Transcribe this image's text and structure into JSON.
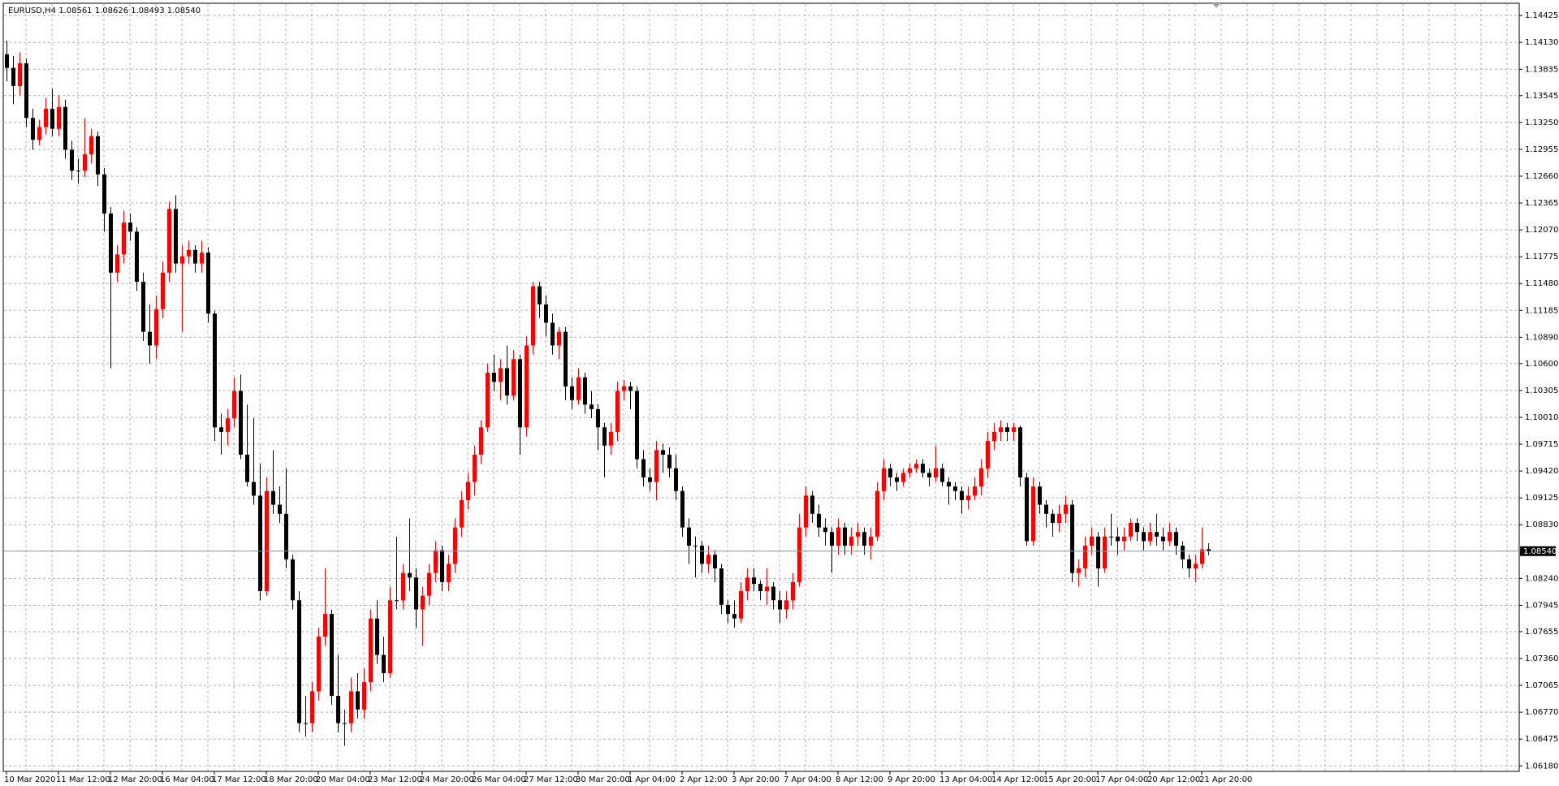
{
  "chart_data": {
    "type": "candlestick",
    "title": "EURUSD,H4  1.08561 1.08626 1.08493 1.08540",
    "up_color": "#ff0000",
    "down_color": "#000000",
    "grid": true,
    "last_price": {
      "value": 1.0854,
      "label": "1.08540"
    },
    "x_labels": [
      "10 Mar 2020",
      "11 Mar 12:00",
      "12 Mar 20:00",
      "16 Mar 04:00",
      "17 Mar 12:00",
      "18 Mar 20:00",
      "20 Mar 04:00",
      "23 Mar 12:00",
      "24 Mar 20:00",
      "26 Mar 04:00",
      "27 Mar 12:00",
      "30 Mar 20:00",
      "1 Apr 04:00",
      "2 Apr 12:00",
      "3 Apr 20:00",
      "7 Apr 04:00",
      "8 Apr 12:00",
      "9 Apr 20:00",
      "13 Apr 04:00",
      "14 Apr 12:00",
      "15 Apr 20:00",
      "17 Apr 04:00",
      "20 Apr 12:00",
      "21 Apr 20:00"
    ],
    "ylim": [
      1.0612,
      1.1456
    ],
    "yticks": [
      1.14425,
      {
        "value": 1.1413,
        "label": "1.14130"
      },
      1.13835,
      1.13545,
      {
        "value": 1.1325,
        "label": "1.13250"
      },
      1.12955,
      {
        "value": 1.1266,
        "label": "1.12660"
      },
      1.12365,
      {
        "value": 1.1207,
        "label": "1.12070"
      },
      1.11775,
      {
        "value": 1.1148,
        "label": "1.11480"
      },
      1.11185,
      {
        "value": 1.1089,
        "label": "1.10890"
      },
      {
        "value": 1.106,
        "label": "1.10600"
      },
      1.10305,
      {
        "value": 1.1001,
        "label": "1.10010"
      },
      1.09715,
      {
        "value": 1.0942,
        "label": "1.09420"
      },
      1.09125,
      {
        "value": 1.0883,
        "label": "1.08830"
      },
      {
        "value": 1.0824,
        "label": "1.08240"
      },
      1.07945,
      1.07655,
      {
        "value": 1.0736,
        "label": "1.07360"
      },
      1.07065,
      {
        "value": 1.0677,
        "label": "1.06770"
      },
      1.06475,
      {
        "value": 1.0618,
        "label": "1.06180"
      }
    ],
    "candles": [
      [
        1.14,
        1.1415,
        1.137,
        1.1385
      ],
      [
        1.1385,
        1.1398,
        1.1345,
        1.1365
      ],
      [
        1.1365,
        1.1402,
        1.1355,
        1.139
      ],
      [
        1.139,
        1.1395,
        1.132,
        1.133
      ],
      [
        1.133,
        1.134,
        1.1295,
        1.1306
      ],
      [
        1.1306,
        1.1328,
        1.13,
        1.132
      ],
      [
        1.132,
        1.1352,
        1.1312,
        1.134
      ],
      [
        1.134,
        1.1362,
        1.131,
        1.1318
      ],
      [
        1.1318,
        1.1355,
        1.131,
        1.1342
      ],
      [
        1.1342,
        1.135,
        1.1285,
        1.1295
      ],
      [
        1.1295,
        1.1305,
        1.1262,
        1.1272
      ],
      [
        1.1272,
        1.1285,
        1.1258,
        1.1272
      ],
      [
        1.1272,
        1.133,
        1.1265,
        1.129
      ],
      [
        1.129,
        1.1318,
        1.128,
        1.131
      ],
      [
        1.131,
        1.1315,
        1.1255,
        1.1268
      ],
      [
        1.1268,
        1.1275,
        1.1205,
        1.1225
      ],
      [
        1.1225,
        1.1232,
        1.1055,
        1.116
      ],
      [
        1.116,
        1.119,
        1.115,
        1.118
      ],
      [
        1.118,
        1.1228,
        1.117,
        1.1215
      ],
      [
        1.1215,
        1.1225,
        1.1195,
        1.1205
      ],
      [
        1.1205,
        1.121,
        1.114,
        1.115
      ],
      [
        1.115,
        1.116,
        1.1085,
        1.1095
      ],
      [
        1.1095,
        1.1125,
        1.106,
        1.108
      ],
      [
        1.108,
        1.1135,
        1.1065,
        1.112
      ],
      [
        1.112,
        1.1172,
        1.111,
        1.116
      ],
      [
        1.116,
        1.1238,
        1.115,
        1.123
      ],
      [
        1.123,
        1.1245,
        1.116,
        1.117
      ],
      [
        1.117,
        1.119,
        1.1095,
        1.1178
      ],
      [
        1.1178,
        1.1195,
        1.117,
        1.1185
      ],
      [
        1.1185,
        1.119,
        1.116,
        1.117
      ],
      [
        1.117,
        1.1195,
        1.116,
        1.1182
      ],
      [
        1.1182,
        1.1188,
        1.1105,
        1.1115
      ],
      [
        1.1115,
        1.1118,
        1.0975,
        1.099
      ],
      [
        1.099,
        1.1005,
        1.096,
        1.0985
      ],
      [
        1.0985,
        1.101,
        1.097,
        1.1
      ],
      [
        1.1,
        1.1045,
        1.099,
        1.103
      ],
      [
        1.103,
        1.1048,
        1.0955,
        1.096
      ],
      [
        1.096,
        1.1015,
        1.0925,
        1.093
      ],
      [
        1.093,
        1.1,
        1.0905,
        1.0915
      ],
      [
        1.0915,
        1.095,
        1.08,
        1.081
      ],
      [
        1.081,
        1.0935,
        1.0805,
        1.092
      ],
      [
        1.092,
        1.0965,
        1.0895,
        1.0905
      ],
      [
        1.0905,
        1.0925,
        1.0885,
        1.0895
      ],
      [
        1.0895,
        1.0945,
        1.0835,
        1.0845
      ],
      [
        1.0845,
        1.085,
        1.079,
        1.08
      ],
      [
        1.08,
        1.081,
        1.0655,
        1.0665
      ],
      [
        1.0665,
        1.0695,
        1.065,
        1.0665
      ],
      [
        1.0665,
        1.071,
        1.0655,
        1.07
      ],
      [
        1.07,
        1.077,
        1.069,
        1.076
      ],
      [
        1.076,
        1.0835,
        1.075,
        1.0785
      ],
      [
        1.0785,
        1.079,
        1.0685,
        1.0695
      ],
      [
        1.0695,
        1.074,
        1.0655,
        1.0665
      ],
      [
        1.0665,
        1.068,
        1.064,
        1.0665
      ],
      [
        1.0665,
        1.0715,
        1.0655,
        1.07
      ],
      [
        1.07,
        1.072,
        1.067,
        1.068
      ],
      [
        1.068,
        1.0725,
        1.067,
        1.071
      ],
      [
        1.071,
        1.079,
        1.07,
        1.078
      ],
      [
        1.078,
        1.08,
        1.073,
        1.074
      ],
      [
        1.074,
        1.076,
        1.071,
        1.072
      ],
      [
        1.072,
        1.0815,
        1.0715,
        1.08
      ],
      [
        1.08,
        1.087,
        1.079,
        1.08
      ],
      [
        1.08,
        1.084,
        1.079,
        1.083
      ],
      [
        1.083,
        1.089,
        1.081,
        1.0825
      ],
      [
        1.0825,
        1.0835,
        1.077,
        1.079
      ],
      [
        1.079,
        1.0815,
        1.075,
        1.0805
      ],
      [
        1.0805,
        1.084,
        1.0795,
        1.083
      ],
      [
        1.083,
        1.0865,
        1.082,
        1.0855
      ],
      [
        1.0855,
        1.086,
        1.081,
        1.082
      ],
      [
        1.082,
        1.085,
        1.081,
        1.084
      ],
      [
        1.084,
        1.089,
        1.083,
        1.088
      ],
      [
        1.088,
        1.092,
        1.087,
        1.091
      ],
      [
        1.091,
        1.094,
        1.09,
        1.093
      ],
      [
        1.093,
        1.097,
        1.0915,
        1.096
      ],
      [
        1.096,
        1.0998,
        1.095,
        1.099
      ],
      [
        1.099,
        1.106,
        1.0985,
        1.105
      ],
      [
        1.105,
        1.107,
        1.103,
        1.104
      ],
      [
        1.104,
        1.1065,
        1.102,
        1.1055
      ],
      [
        1.1055,
        1.108,
        1.1015,
        1.1025
      ],
      [
        1.1025,
        1.1075,
        1.102,
        1.1065
      ],
      [
        1.1065,
        1.107,
        1.096,
        1.099
      ],
      [
        1.099,
        1.109,
        1.098,
        1.108
      ],
      [
        1.108,
        1.115,
        1.107,
        1.1145
      ],
      [
        1.1145,
        1.115,
        1.111,
        1.1125
      ],
      [
        1.1125,
        1.1135,
        1.109,
        1.1105
      ],
      [
        1.1105,
        1.1115,
        1.107,
        1.108
      ],
      [
        1.108,
        1.11,
        1.1065,
        1.1095
      ],
      [
        1.1095,
        1.11,
        1.102,
        1.1035
      ],
      [
        1.1035,
        1.1045,
        1.101,
        1.102
      ],
      [
        1.102,
        1.1055,
        1.1015,
        1.1045
      ],
      [
        1.1045,
        1.105,
        1.1005,
        1.1015
      ],
      [
        1.1015,
        1.103,
        1.1,
        1.101
      ],
      [
        1.101,
        1.1015,
        1.0965,
        1.099
      ],
      [
        1.099,
        1.0995,
        1.0935,
        1.097
      ],
      [
        1.097,
        1.0995,
        1.096,
        1.0985
      ],
      [
        1.0985,
        1.104,
        1.0975,
        1.103
      ],
      [
        1.103,
        1.1042,
        1.102,
        1.1035
      ],
      [
        1.1035,
        1.104,
        1.101,
        1.103
      ],
      [
        1.103,
        1.1035,
        1.0945,
        1.0955
      ],
      [
        1.0955,
        1.0965,
        1.0925,
        1.0935
      ],
      [
        1.0935,
        1.0945,
        1.092,
        1.093
      ],
      [
        1.093,
        1.0975,
        1.091,
        1.0965
      ],
      [
        1.0965,
        1.0972,
        1.094,
        1.096
      ],
      [
        1.096,
        1.0968,
        1.0935,
        1.0945
      ],
      [
        1.0945,
        1.096,
        1.091,
        1.092
      ],
      [
        1.092,
        1.0925,
        1.087,
        1.088
      ],
      [
        1.088,
        1.089,
        1.084,
        1.086
      ],
      [
        1.086,
        1.087,
        1.0825,
        1.086
      ],
      [
        1.086,
        1.0865,
        1.083,
        1.084
      ],
      [
        1.084,
        1.086,
        1.083,
        1.085
      ],
      [
        1.085,
        1.0855,
        1.082,
        1.0835
      ],
      [
        1.0835,
        1.084,
        1.0785,
        1.0795
      ],
      [
        1.0795,
        1.08,
        1.0775,
        1.0785
      ],
      [
        1.0785,
        1.08,
        1.077,
        1.078
      ],
      [
        1.078,
        1.082,
        1.0775,
        1.081
      ],
      [
        1.081,
        1.0835,
        1.08,
        1.0825
      ],
      [
        1.0825,
        1.0835,
        1.081,
        1.0818
      ],
      [
        1.0818,
        1.0822,
        1.08,
        1.081
      ],
      [
        1.081,
        1.0835,
        1.0795,
        1.0815
      ],
      [
        1.0815,
        1.082,
        1.079,
        1.08
      ],
      [
        1.08,
        1.081,
        1.0775,
        1.079
      ],
      [
        1.079,
        1.081,
        1.078,
        1.08
      ],
      [
        1.08,
        1.083,
        1.079,
        1.082
      ],
      [
        1.082,
        1.0895,
        1.0815,
        1.088
      ],
      [
        1.088,
        1.0925,
        1.087,
        1.0915
      ],
      [
        1.0915,
        1.092,
        1.0885,
        1.0895
      ],
      [
        1.0895,
        1.0905,
        1.087,
        1.088
      ],
      [
        1.088,
        1.089,
        1.086,
        1.0875
      ],
      [
        1.0875,
        1.088,
        1.083,
        1.086
      ],
      [
        1.086,
        1.089,
        1.085,
        1.088
      ],
      [
        1.088,
        1.0885,
        1.085,
        1.086
      ],
      [
        1.086,
        1.088,
        1.085,
        1.087
      ],
      [
        1.087,
        1.0885,
        1.086,
        1.0875
      ],
      [
        1.0875,
        1.088,
        1.085,
        1.086
      ],
      [
        1.086,
        1.088,
        1.0845,
        1.087
      ],
      [
        1.087,
        1.093,
        1.0865,
        1.092
      ],
      [
        1.092,
        1.0955,
        1.091,
        1.0945
      ],
      [
        1.0945,
        1.095,
        1.0925,
        1.0935
      ],
      [
        1.0935,
        1.094,
        1.092,
        1.093
      ],
      [
        1.093,
        1.0945,
        1.0925,
        1.094
      ],
      [
        1.094,
        1.095,
        1.0935,
        1.0945
      ],
      [
        1.0945,
        1.0955,
        1.094,
        1.095
      ],
      [
        1.095,
        1.0955,
        1.0935,
        1.094
      ],
      [
        1.094,
        1.0945,
        1.0925,
        1.0935
      ],
      [
        1.0935,
        1.097,
        1.093,
        1.0945
      ],
      [
        1.0945,
        1.095,
        1.0925,
        1.093
      ],
      [
        1.093,
        1.0935,
        1.0905,
        1.0925
      ],
      [
        1.0925,
        1.093,
        1.091,
        1.092
      ],
      [
        1.092,
        1.0925,
        1.0895,
        1.091
      ],
      [
        1.091,
        1.0925,
        1.09,
        1.0915
      ],
      [
        1.0915,
        1.0935,
        1.091,
        1.0925
      ],
      [
        1.0925,
        1.0955,
        1.0915,
        1.0945
      ],
      [
        1.0945,
        1.0985,
        1.0935,
        1.0975
      ],
      [
        1.0975,
        1.0995,
        1.0965,
        1.0985
      ],
      [
        1.0985,
        1.0998,
        1.0975,
        1.099
      ],
      [
        1.099,
        1.0995,
        1.0975,
        1.0985
      ],
      [
        1.0985,
        1.0995,
        1.0975,
        1.099
      ],
      [
        1.099,
        1.0992,
        1.0925,
        1.0935
      ],
      [
        1.0935,
        1.094,
        1.086,
        1.0865
      ],
      [
        1.0865,
        1.0935,
        1.086,
        1.0925
      ],
      [
        1.0925,
        1.093,
        1.0895,
        1.0905
      ],
      [
        1.0905,
        1.091,
        1.088,
        1.0895
      ],
      [
        1.0895,
        1.09,
        1.087,
        1.0885
      ],
      [
        1.0885,
        1.0905,
        1.0875,
        1.0895
      ],
      [
        1.0895,
        1.0915,
        1.0885,
        1.0905
      ],
      [
        1.0905,
        1.091,
        1.082,
        1.083
      ],
      [
        1.083,
        1.0845,
        1.0815,
        1.0835
      ],
      [
        1.0835,
        1.087,
        1.0825,
        1.086
      ],
      [
        1.086,
        1.088,
        1.085,
        1.087
      ],
      [
        1.087,
        1.0875,
        1.0815,
        1.0835
      ],
      [
        1.0835,
        1.088,
        1.083,
        1.087
      ],
      [
        1.087,
        1.0895,
        1.086,
        1.087
      ],
      [
        1.087,
        1.088,
        1.085,
        1.0865
      ],
      [
        1.0865,
        1.088,
        1.0855,
        1.087
      ],
      [
        1.087,
        1.089,
        1.0865,
        1.0885
      ],
      [
        1.0885,
        1.089,
        1.0865,
        1.0875
      ],
      [
        1.0875,
        1.088,
        1.0855,
        1.0865
      ],
      [
        1.0865,
        1.0885,
        1.086,
        1.0875
      ],
      [
        1.0875,
        1.0895,
        1.086,
        1.087
      ],
      [
        1.087,
        1.088,
        1.0855,
        1.0865
      ],
      [
        1.0865,
        1.0885,
        1.086,
        1.0875
      ],
      [
        1.0875,
        1.088,
        1.085,
        1.086
      ],
      [
        1.086,
        1.0865,
        1.0835,
        1.0845
      ],
      [
        1.0845,
        1.085,
        1.0825,
        1.0835
      ],
      [
        1.0835,
        1.085,
        1.082,
        1.084
      ],
      [
        1.084,
        1.088,
        1.0835,
        1.0856
      ],
      [
        1.08561,
        1.08626,
        1.08493,
        1.0854
      ]
    ]
  }
}
